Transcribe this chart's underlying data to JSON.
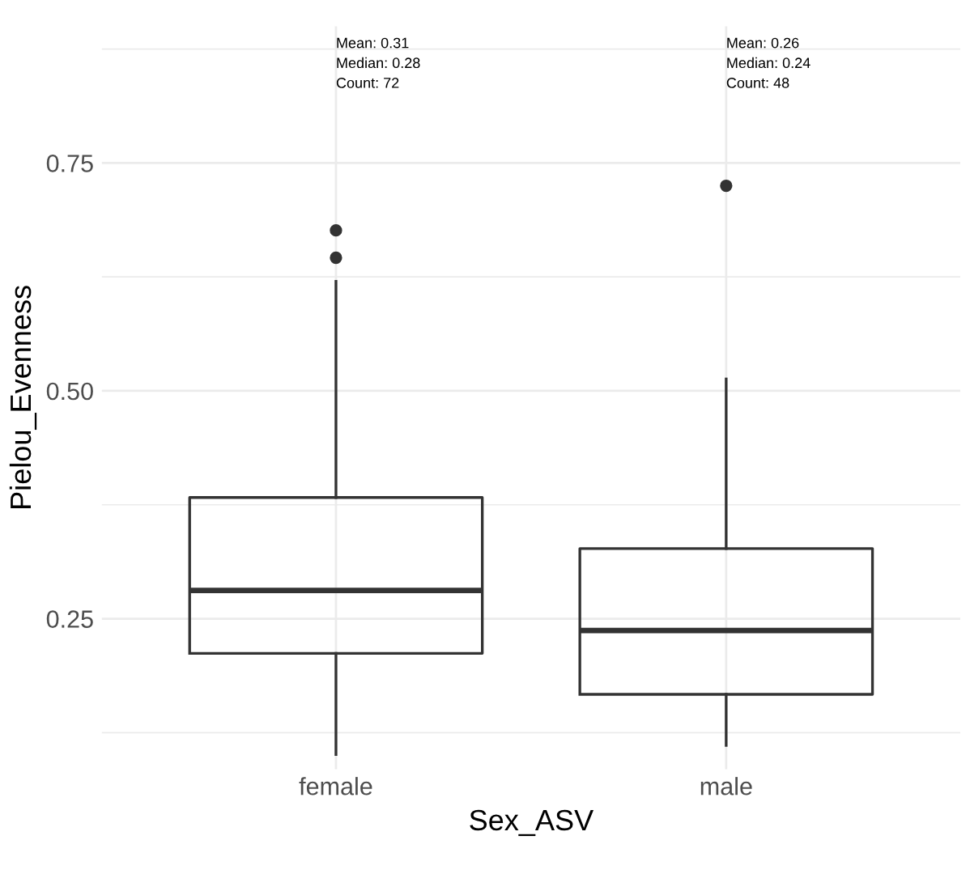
{
  "chart_data": {
    "type": "box",
    "xlabel": "Sex_ASV",
    "ylabel": "Pielou_Evenness",
    "categories": [
      "female",
      "male"
    ],
    "boxes": [
      {
        "low": 0.101,
        "q1": 0.212,
        "median": 0.281,
        "q3": 0.383,
        "high": 0.62,
        "outliers": [
          0.646,
          0.676
        ]
      },
      {
        "low": 0.111,
        "q1": 0.167,
        "median": 0.237,
        "q3": 0.327,
        "high": 0.513,
        "outliers": [
          0.725
        ]
      }
    ],
    "ylim": [
      0.085,
      0.9
    ],
    "yticks": [
      {
        "value": 0.125,
        "label": null
      },
      {
        "value": 0.25,
        "label": "0.25"
      },
      {
        "value": 0.375,
        "label": null
      },
      {
        "value": 0.5,
        "label": "0.50"
      },
      {
        "value": 0.625,
        "label": null
      },
      {
        "value": 0.75,
        "label": "0.75"
      },
      {
        "value": 0.875,
        "label": null
      }
    ],
    "grid": true,
    "annotations": [
      "Mean: 0.31\nMedian: 0.28\nCount: 72",
      "Mean: 0.26\nMedian: 0.24\nCount: 48"
    ]
  }
}
